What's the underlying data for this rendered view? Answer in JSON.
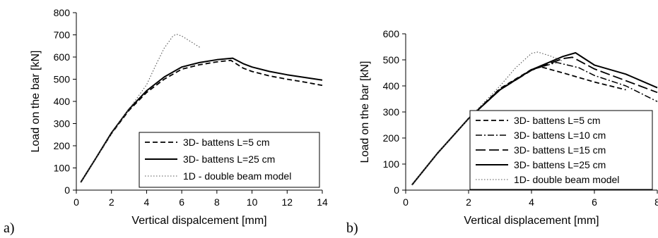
{
  "panels": [
    {
      "label": "a)",
      "chart_data": {
        "type": "line",
        "xlabel": "Vertical dispalcement [mm]",
        "ylabel": "Load on the bar [kN]",
        "xlim": [
          0,
          14
        ],
        "ylim": [
          0,
          800
        ],
        "xticks": [
          0,
          2,
          4,
          6,
          8,
          10,
          12,
          14
        ],
        "yticks": [
          0,
          100,
          200,
          300,
          400,
          500,
          600,
          700,
          800
        ],
        "grid": false,
        "legend": "bottom-right",
        "series": [
          {
            "name": "3D- battens L=5 cm",
            "style": "dashed",
            "x": [
              0.25,
              1,
              2,
              3,
              4,
              5,
              6,
              7,
              8,
              8.8,
              9.5,
              10,
              11,
              12,
              13,
              14
            ],
            "y": [
              35,
              130,
              255,
              360,
              440,
              500,
              545,
              565,
              578,
              585,
              550,
              535,
              515,
              500,
              487,
              472
            ]
          },
          {
            "name": "3D- battens L=25 cm",
            "style": "solid",
            "x": [
              0.25,
              1,
              2,
              3,
              4,
              5,
              6,
              7,
              8,
              8.9,
              9.5,
              10,
              11,
              12,
              13,
              14
            ],
            "y": [
              35,
              130,
              258,
              365,
              448,
              510,
              555,
              575,
              588,
              595,
              570,
              555,
              535,
              520,
              508,
              496
            ]
          },
          {
            "name": "1D - double beam model",
            "style": "dotted",
            "x": [
              0.25,
              1,
              2,
              3,
              4,
              4.5,
              5,
              5.5,
              5.7,
              6,
              6.5,
              7.1
            ],
            "y": [
              35,
              130,
              255,
              365,
              475,
              560,
              640,
              695,
              703,
              695,
              670,
              640
            ]
          }
        ]
      }
    },
    {
      "label": "b)",
      "chart_data": {
        "type": "line",
        "xlabel": "Vertical displacement [mm]",
        "ylabel": "Load on the bar [kN]",
        "xlim": [
          0,
          8
        ],
        "ylim": [
          0,
          600
        ],
        "xticks": [
          0,
          2,
          4,
          6,
          8
        ],
        "yticks": [
          0,
          100,
          200,
          300,
          400,
          500,
          600
        ],
        "grid": false,
        "legend": "bottom-right",
        "series": [
          {
            "name": "3D- battens L=5 cm",
            "style": "dashed",
            "x": [
              0.2,
              1,
              2,
              3,
              4,
              4.3,
              5,
              6,
              7
            ],
            "y": [
              20,
              140,
              275,
              390,
              463,
              473,
              450,
              415,
              385
            ]
          },
          {
            "name": "3D- battens L=10 cm",
            "style": "dashdot",
            "x": [
              0.2,
              1,
              2,
              3,
              4,
              4.8,
              5.5,
              6,
              7,
              8
            ],
            "y": [
              20,
              140,
              275,
              388,
              462,
              490,
              470,
              440,
              400,
              340
            ]
          },
          {
            "name": "3D- battens L=15 cm",
            "style": "longdash",
            "x": [
              0.2,
              1,
              2,
              3,
              4,
              5,
              5.3,
              6,
              7,
              8
            ],
            "y": [
              20,
              140,
              275,
              385,
              460,
              505,
              510,
              465,
              420,
              375
            ]
          },
          {
            "name": "3D- battens L=25 cm",
            "style": "solid",
            "x": [
              0.2,
              1,
              2,
              3,
              4,
              5,
              5.4,
              6,
              7,
              8
            ],
            "y": [
              20,
              140,
              275,
              385,
              462,
              513,
              527,
              480,
              445,
              393
            ]
          },
          {
            "name": "1D- double beam model",
            "style": "dotted",
            "x": [
              0.2,
              1,
              2,
              3,
              3.5,
              4,
              4.2,
              4.6,
              5
            ],
            "y": [
              20,
              140,
              275,
              400,
              470,
              525,
              530,
              515,
              495
            ]
          }
        ]
      }
    }
  ]
}
